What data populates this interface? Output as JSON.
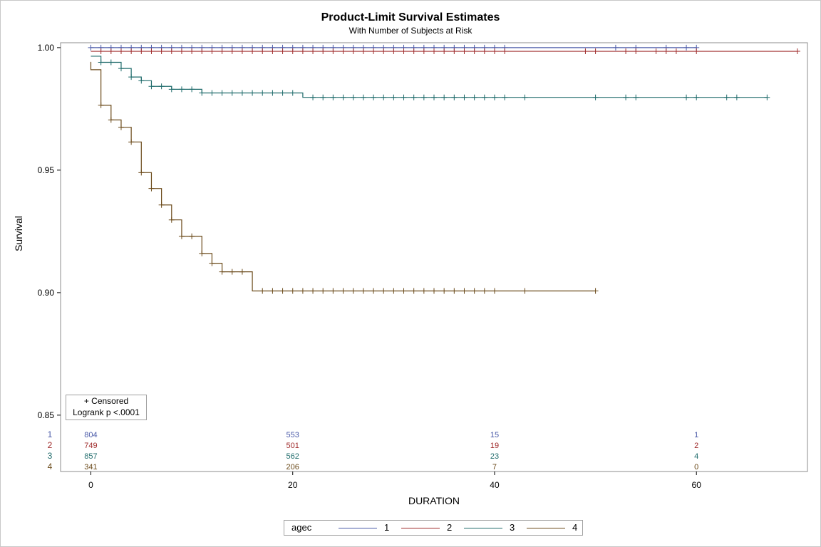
{
  "chart_data": {
    "type": "line",
    "title": "Product-Limit Survival Estimates",
    "subtitle": "With Number of Subjects at Risk",
    "xlabel": "DURATION",
    "ylabel": "Survival",
    "xlim": [
      -3,
      71
    ],
    "ylim": [
      0.827,
      1.002
    ],
    "x_ticks": [
      "0",
      "20",
      "40",
      "60"
    ],
    "x_tick_values": [
      0,
      20,
      40,
      60
    ],
    "y_ticks": [
      "0.85",
      "0.90",
      "0.95",
      "1.00"
    ],
    "y_tick_values": [
      0.85,
      0.9,
      0.95,
      1.0
    ],
    "inset": [
      "+ Censored",
      "Logrank p <.0001"
    ],
    "legend_title": "agec",
    "series": [
      {
        "name": "1",
        "color": "#4a5aa8",
        "steps": [
          [
            0,
            1.0
          ],
          [
            60,
            1.0
          ]
        ],
        "censored": [
          0,
          1,
          2,
          3,
          4,
          5,
          6,
          7,
          8,
          9,
          10,
          11,
          12,
          13,
          14,
          15,
          16,
          17,
          18,
          19,
          20,
          21,
          22,
          23,
          24,
          25,
          26,
          27,
          28,
          29,
          30,
          31,
          32,
          33,
          34,
          35,
          36,
          37,
          38,
          39,
          40,
          41,
          52,
          54,
          57,
          59,
          60
        ]
      },
      {
        "name": "2",
        "color": "#a02c2c",
        "steps": [
          [
            0,
            0.9985
          ],
          [
            70,
            0.9985
          ]
        ],
        "censored": [
          1,
          2,
          3,
          4,
          5,
          6,
          7,
          8,
          9,
          10,
          11,
          12,
          13,
          14,
          15,
          16,
          17,
          18,
          19,
          20,
          21,
          22,
          23,
          24,
          25,
          26,
          27,
          28,
          29,
          30,
          31,
          32,
          33,
          34,
          35,
          36,
          37,
          38,
          39,
          40,
          41,
          49,
          50,
          53,
          54,
          56,
          57,
          58,
          60,
          70
        ]
      },
      {
        "name": "3",
        "color": "#1f6b6b",
        "steps": [
          [
            0,
            0.9965
          ],
          [
            1,
            0.994
          ],
          [
            3,
            0.9915
          ],
          [
            4,
            0.988
          ],
          [
            5,
            0.9865
          ],
          [
            6,
            0.9842
          ],
          [
            8,
            0.983
          ],
          [
            11,
            0.9815
          ],
          [
            21,
            0.9797
          ],
          [
            67,
            0.9797
          ]
        ],
        "censored": [
          1,
          2,
          3,
          4,
          5,
          6,
          7,
          8,
          9,
          10,
          11,
          12,
          13,
          14,
          15,
          16,
          17,
          18,
          19,
          20,
          22,
          23,
          24,
          25,
          26,
          27,
          28,
          29,
          30,
          31,
          32,
          33,
          34,
          35,
          36,
          37,
          38,
          39,
          40,
          41,
          43,
          50,
          53,
          54,
          59,
          60,
          63,
          64,
          67
        ]
      },
      {
        "name": "4",
        "color": "#6b4a1a",
        "steps": [
          [
            0,
            0.9942
          ],
          [
            0,
            0.991
          ],
          [
            1,
            0.9765
          ],
          [
            2,
            0.9705
          ],
          [
            3,
            0.9675
          ],
          [
            4,
            0.9615
          ],
          [
            5,
            0.949
          ],
          [
            6,
            0.9425
          ],
          [
            7,
            0.9358
          ],
          [
            8,
            0.9297
          ],
          [
            9,
            0.923
          ],
          [
            11,
            0.916
          ],
          [
            12,
            0.912
          ],
          [
            13,
            0.9085
          ],
          [
            16,
            0.9007
          ],
          [
            50,
            0.9007
          ]
        ],
        "censored": [
          1,
          2,
          3,
          4,
          5,
          6,
          7,
          8,
          9,
          10,
          11,
          12,
          13,
          14,
          15,
          17,
          18,
          19,
          20,
          21,
          22,
          23,
          24,
          25,
          26,
          27,
          28,
          29,
          30,
          31,
          32,
          33,
          34,
          35,
          36,
          37,
          38,
          39,
          40,
          43,
          50
        ]
      }
    ],
    "at_risk": {
      "times": [
        0,
        20,
        40,
        60
      ],
      "rows": [
        {
          "group": "1",
          "color": "#4a5aa8",
          "counts": [
            "804",
            "553",
            "15",
            "1"
          ]
        },
        {
          "group": "2",
          "color": "#a02c2c",
          "counts": [
            "749",
            "501",
            "19",
            "2"
          ]
        },
        {
          "group": "3",
          "color": "#1f6b6b",
          "counts": [
            "857",
            "562",
            "23",
            "4"
          ]
        },
        {
          "group": "4",
          "color": "#6b4a1a",
          "counts": [
            "341",
            "206",
            "7",
            "0"
          ]
        }
      ]
    }
  }
}
